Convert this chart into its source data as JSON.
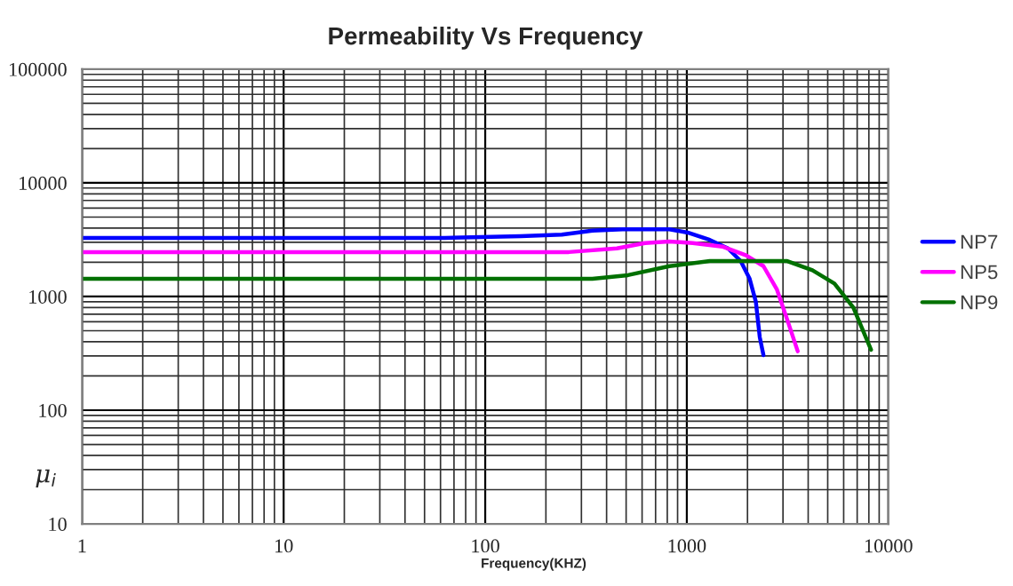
{
  "chart_data": {
    "type": "line",
    "title": "Permeability Vs Frequency",
    "xlabel": "Frequency(KHZ)",
    "ylabel": "μ$_{i}$",
    "log": "xy",
    "grid": true,
    "legend": "right",
    "line_style": "solid",
    "marker": "none",
    "xlim": [
      1,
      10000
    ],
    "xticks": [
      1,
      10,
      100,
      1000,
      10000
    ],
    "ylim": [
      10,
      100000
    ],
    "yticks": [
      10,
      100,
      1000,
      10000,
      100000
    ],
    "series": [
      {
        "name": "NP7",
        "color": "#0000ff",
        "x": [
          1,
          63,
          150,
          240,
          340,
          480,
          820,
          1010,
          1300,
          1600,
          1850,
          2050,
          2200,
          2300,
          2400
        ],
        "values": [
          3280,
          3280,
          3400,
          3500,
          3800,
          3900,
          3900,
          3650,
          3150,
          2650,
          2050,
          1430,
          900,
          440,
          305
        ]
      },
      {
        "name": "NP5",
        "color": "#ff00ff",
        "x": [
          1,
          63,
          260,
          450,
          620,
          820,
          1070,
          1500,
          1970,
          2400,
          2800,
          3150,
          3550
        ],
        "values": [
          2460,
          2460,
          2460,
          2650,
          2950,
          3050,
          2950,
          2750,
          2300,
          1850,
          1150,
          625,
          330
        ]
      },
      {
        "name": "NP9",
        "color": "#007000",
        "x": [
          1,
          63,
          340,
          510,
          820,
          1300,
          1970,
          3150,
          4200,
          5400,
          6700,
          8200
        ],
        "values": [
          1430,
          1430,
          1430,
          1540,
          1850,
          2050,
          2050,
          2050,
          1700,
          1300,
          800,
          340
        ]
      }
    ]
  }
}
